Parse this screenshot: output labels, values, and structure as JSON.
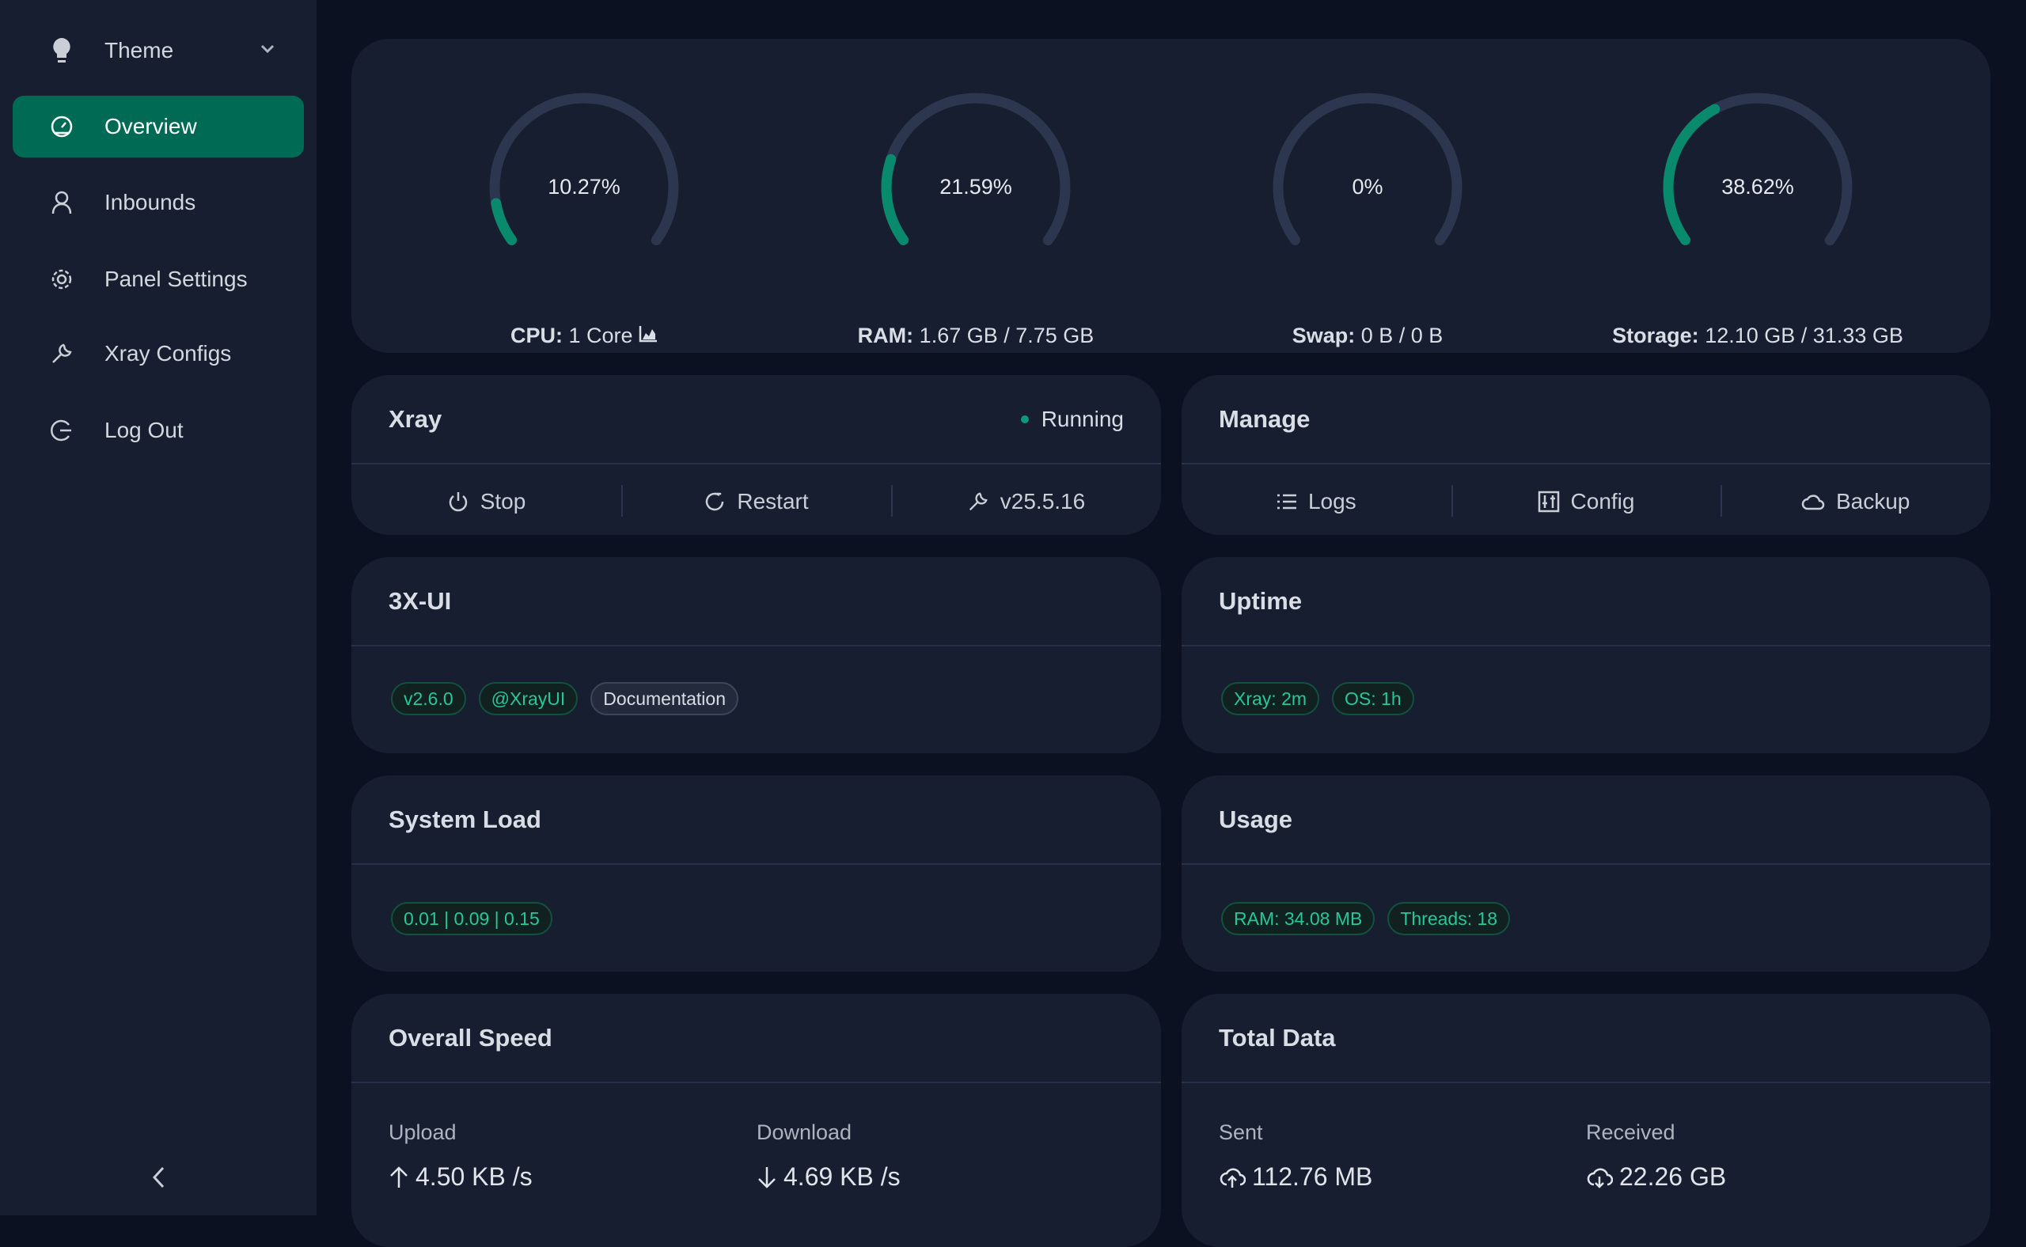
{
  "sidebar": {
    "theme": "Theme",
    "items": [
      {
        "label": "Overview",
        "icon": "dashboard-icon",
        "active": true
      },
      {
        "label": "Inbounds",
        "icon": "user-icon"
      },
      {
        "label": "Panel Settings",
        "icon": "gear-icon"
      },
      {
        "label": "Xray Configs",
        "icon": "tool-icon"
      },
      {
        "label": "Log Out",
        "icon": "logout-icon"
      }
    ]
  },
  "gauges": [
    {
      "value": "10.27%",
      "percent": 10.27,
      "label_key": "CPU:",
      "label_val": "1 Core"
    },
    {
      "value": "21.59%",
      "percent": 21.59,
      "label_key": "RAM:",
      "label_val": "1.67 GB / 7.75 GB"
    },
    {
      "value": "0%",
      "percent": 0,
      "label_key": "Swap:",
      "label_val": "0 B / 0 B"
    },
    {
      "value": "38.62%",
      "percent": 38.62,
      "label_key": "Storage:",
      "label_val": "12.10 GB / 31.33 GB"
    }
  ],
  "colors": {
    "accent": "#0a8a6c",
    "active_bg": "#006a55",
    "track": "#2c374f"
  },
  "xray": {
    "title": "Xray",
    "status": "Running",
    "stop": "Stop",
    "restart": "Restart",
    "version": "v25.5.16"
  },
  "manage": {
    "title": "Manage",
    "logs": "Logs",
    "config": "Config",
    "backup": "Backup"
  },
  "app": {
    "title": "3X-UI",
    "version": "v2.6.0",
    "channel": "@XrayUI",
    "docs": "Documentation"
  },
  "uptime": {
    "title": "Uptime",
    "xray": "Xray: 2m",
    "os": "OS: 1h"
  },
  "load": {
    "title": "System Load",
    "values": "0.01 | 0.09 | 0.15"
  },
  "usage": {
    "title": "Usage",
    "ram": "RAM: 34.08 MB",
    "threads": "Threads: 18"
  },
  "speed": {
    "title": "Overall Speed",
    "upload_label": "Upload",
    "upload": "4.50 KB /s",
    "download_label": "Download",
    "download": "4.69 KB /s"
  },
  "total": {
    "title": "Total Data",
    "sent_label": "Sent",
    "sent": "112.76 MB",
    "received_label": "Received",
    "received": "22.26 GB"
  }
}
